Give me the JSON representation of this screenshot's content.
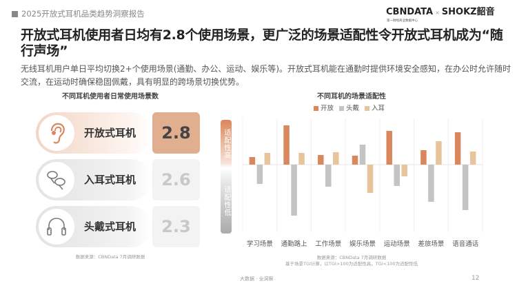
{
  "header": {
    "report_title": "2025开放式耳机品类趋势洞察报告",
    "logo_left": "CBNDATA",
    "logo_sep": "×",
    "logo_right": "SHOKZ韶音",
    "logo_sub": "第一财经商业数据中心"
  },
  "title": "开放式耳机使用者日均有2.8个使用场景，更广泛的场景适配性令开放式耳机成为“随行声场”",
  "description": "无线耳机用户单日平均切换2+个使用场景(通勤、办公、运动、娱乐等)。开放式耳机能在通勤时提供环境安全感知，在办公时允许随时交流，在运动时确保稳固佩戴，具有明显的跨场景切换优势。",
  "left_panel": {
    "title": "不同耳机使用者日常使用场景数",
    "items": [
      {
        "label": "开放式耳机",
        "value": "2.8",
        "icon": "ear-icon"
      },
      {
        "label": "入耳式耳机",
        "value": "2.6",
        "icon": "earbuds-icon"
      },
      {
        "label": "头戴式耳机",
        "value": "2.3",
        "icon": "headphones-icon"
      }
    ],
    "source": "数据来源：CBNData 7月调研数据"
  },
  "chart_data": {
    "type": "bar",
    "title": "不同耳机的场景适配性",
    "categories": [
      "学习场景",
      "通勤路上",
      "工作场景",
      "娱乐场景",
      "运动场景",
      "差旅场景",
      "语音通话"
    ],
    "series": [
      {
        "name": "开放",
        "color": "#d9875c",
        "values": [
          11,
          57,
          14,
          13,
          49,
          21,
          47
        ]
      },
      {
        "name": "头戴",
        "color": "#c4c4c4",
        "values": [
          -28,
          -74,
          -32,
          29,
          -31,
          -54,
          -66
        ]
      },
      {
        "name": "入耳",
        "color": "#e8c49c",
        "values": [
          17,
          17,
          18,
          -41,
          -17,
          34,
          19
        ]
      }
    ],
    "ylabel_high": "适配性高",
    "ylabel_low": "适配性低",
    "ylim": [
      -80,
      60
    ],
    "value_note": "relative TGI offset (estimated, no axis ticks shown)",
    "legend": "top-center",
    "grid": "vertical separators"
  },
  "chart_source": [
    "数据来源：CBNData 7月调研数据",
    "基于场景TGI计算，以TGI>100为适配性高，TGI<100为适配性低"
  ],
  "footer": {
    "text": "大数据 · 全洞察",
    "page": "12"
  }
}
